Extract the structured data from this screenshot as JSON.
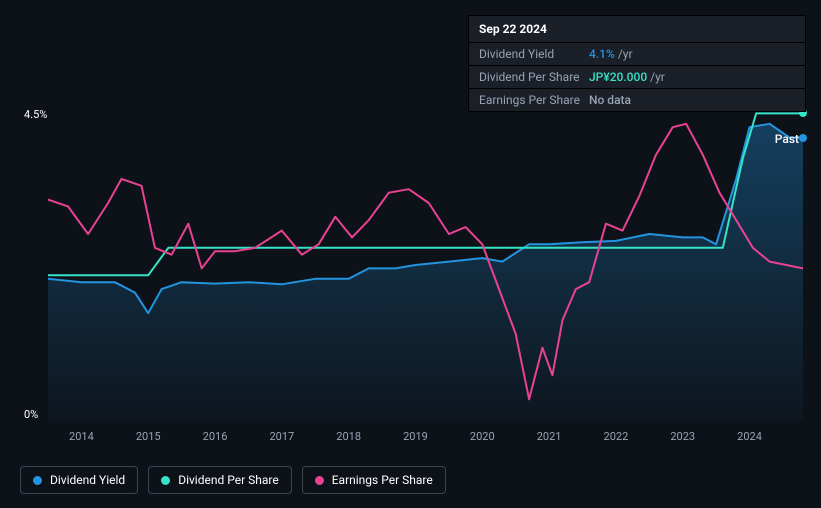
{
  "chart": {
    "type": "line",
    "background_color": "#0d1219",
    "plot_bg_gradient": [
      "#163146",
      "#0f1a27"
    ],
    "grid_color": "#1e2730",
    "text_color": "#ffffff",
    "muted_text_color": "#98a4b3",
    "ylim": [
      0,
      4.5
    ],
    "y_ticks": [
      {
        "value": 0,
        "label": "0%"
      },
      {
        "value": 4.5,
        "label": "4.5%"
      }
    ],
    "x_ticks": [
      "2014",
      "2015",
      "2016",
      "2017",
      "2018",
      "2019",
      "2020",
      "2021",
      "2022",
      "2023",
      "2024"
    ],
    "x_range": [
      2013.5,
      2024.8
    ],
    "past_label": "Past",
    "series": [
      {
        "id": "dividend_yield",
        "label": "Dividend Yield",
        "color": "#2394df",
        "fill": true,
        "line_width": 2,
        "end_dot": true,
        "data": [
          [
            2013.5,
            2.05
          ],
          [
            2014.0,
            2.0
          ],
          [
            2014.5,
            2.0
          ],
          [
            2014.8,
            1.85
          ],
          [
            2015.0,
            1.55
          ],
          [
            2015.2,
            1.9
          ],
          [
            2015.5,
            2.0
          ],
          [
            2016.0,
            1.98
          ],
          [
            2016.5,
            2.0
          ],
          [
            2017.0,
            1.97
          ],
          [
            2017.5,
            2.05
          ],
          [
            2018.0,
            2.05
          ],
          [
            2018.3,
            2.2
          ],
          [
            2018.7,
            2.2
          ],
          [
            2019.0,
            2.25
          ],
          [
            2019.5,
            2.3
          ],
          [
            2020.0,
            2.35
          ],
          [
            2020.3,
            2.3
          ],
          [
            2020.7,
            2.55
          ],
          [
            2021.0,
            2.55
          ],
          [
            2021.5,
            2.58
          ],
          [
            2022.0,
            2.6
          ],
          [
            2022.5,
            2.7
          ],
          [
            2023.0,
            2.65
          ],
          [
            2023.3,
            2.65
          ],
          [
            2023.5,
            2.55
          ],
          [
            2023.8,
            3.5
          ],
          [
            2024.0,
            4.25
          ],
          [
            2024.3,
            4.3
          ],
          [
            2024.6,
            4.1
          ],
          [
            2024.8,
            4.1
          ]
        ]
      },
      {
        "id": "dividend_per_share",
        "label": "Dividend Per Share",
        "color": "#36e3c6",
        "fill": false,
        "line_width": 2,
        "end_dot": true,
        "data": [
          [
            2013.5,
            2.1
          ],
          [
            2015.0,
            2.1
          ],
          [
            2015.3,
            2.5
          ],
          [
            2023.6,
            2.5
          ],
          [
            2023.9,
            3.8
          ],
          [
            2024.1,
            4.45
          ],
          [
            2024.8,
            4.45
          ]
        ]
      },
      {
        "id": "earnings_per_share",
        "label": "Earnings Per Share",
        "color": "#e84393",
        "fill": false,
        "line_width": 2,
        "end_dot": false,
        "data": [
          [
            2013.5,
            3.2
          ],
          [
            2013.8,
            3.1
          ],
          [
            2014.1,
            2.7
          ],
          [
            2014.4,
            3.15
          ],
          [
            2014.6,
            3.5
          ],
          [
            2014.9,
            3.4
          ],
          [
            2015.1,
            2.5
          ],
          [
            2015.35,
            2.4
          ],
          [
            2015.6,
            2.85
          ],
          [
            2015.8,
            2.2
          ],
          [
            2016.0,
            2.45
          ],
          [
            2016.3,
            2.45
          ],
          [
            2016.6,
            2.5
          ],
          [
            2017.0,
            2.75
          ],
          [
            2017.3,
            2.4
          ],
          [
            2017.55,
            2.55
          ],
          [
            2017.8,
            2.95
          ],
          [
            2018.05,
            2.65
          ],
          [
            2018.3,
            2.9
          ],
          [
            2018.6,
            3.3
          ],
          [
            2018.9,
            3.35
          ],
          [
            2019.2,
            3.15
          ],
          [
            2019.5,
            2.7
          ],
          [
            2019.75,
            2.8
          ],
          [
            2020.0,
            2.55
          ],
          [
            2020.25,
            1.9
          ],
          [
            2020.5,
            1.25
          ],
          [
            2020.7,
            0.3
          ],
          [
            2020.9,
            1.05
          ],
          [
            2021.05,
            0.65
          ],
          [
            2021.2,
            1.45
          ],
          [
            2021.4,
            1.9
          ],
          [
            2021.6,
            2.0
          ],
          [
            2021.85,
            2.85
          ],
          [
            2022.1,
            2.75
          ],
          [
            2022.35,
            3.25
          ],
          [
            2022.6,
            3.85
          ],
          [
            2022.85,
            4.25
          ],
          [
            2023.05,
            4.3
          ],
          [
            2023.3,
            3.85
          ],
          [
            2023.55,
            3.3
          ],
          [
            2023.8,
            2.9
          ],
          [
            2024.05,
            2.5
          ],
          [
            2024.3,
            2.3
          ],
          [
            2024.55,
            2.25
          ],
          [
            2024.8,
            2.2
          ]
        ]
      }
    ]
  },
  "tooltip": {
    "title": "Sep 22 2024",
    "rows": [
      {
        "key": "Dividend Yield",
        "value": "4.1%",
        "value_color": "#2394df",
        "suffix": "/yr"
      },
      {
        "key": "Dividend Per Share",
        "value": "JP¥20.000",
        "value_color": "#36e3c6",
        "suffix": "/yr"
      },
      {
        "key": "Earnings Per Share",
        "value": "No data",
        "value_color": "#98a4b3",
        "suffix": ""
      }
    ]
  },
  "legend": [
    {
      "id": "dividend_yield",
      "label": "Dividend Yield",
      "color": "#2394df"
    },
    {
      "id": "dividend_per_share",
      "label": "Dividend Per Share",
      "color": "#36e3c6"
    },
    {
      "id": "earnings_per_share",
      "label": "Earnings Per Share",
      "color": "#e84393"
    }
  ]
}
